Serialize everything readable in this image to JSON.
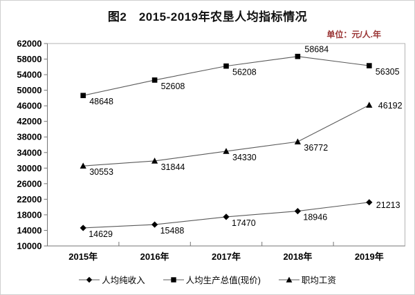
{
  "title": "图2　2015-2019年农垦人均指标情况",
  "unit_label": "单位：元/人.年",
  "chart_data": {
    "type": "line",
    "categories": [
      "2015年",
      "2016年",
      "2017年",
      "2018年",
      "2019年"
    ],
    "series": [
      {
        "key": "per-capita-net-income",
        "name": "人均纯收入",
        "marker": "diamond",
        "values": [
          14629,
          15488,
          17470,
          18946,
          21213
        ]
      },
      {
        "key": "per-capita-gdp-current-price",
        "name": "人均生产总值(现价)",
        "marker": "square",
        "values": [
          48648,
          52608,
          56208,
          58684,
          56305
        ]
      },
      {
        "key": "average-wage",
        "name": "职均工资",
        "marker": "triangle",
        "values": [
          30553,
          31844,
          34330,
          36772,
          46192
        ]
      }
    ],
    "ylim": [
      10000,
      62000
    ],
    "ytick_step": 4000,
    "data_labels": true,
    "grid": false,
    "legend_position": "bottom"
  },
  "colors": {
    "marker": "#000000",
    "line": "#595959",
    "axis": "#737373",
    "frame": "#b3b3b3",
    "text": "#000000",
    "unit_text": "#993333"
  }
}
